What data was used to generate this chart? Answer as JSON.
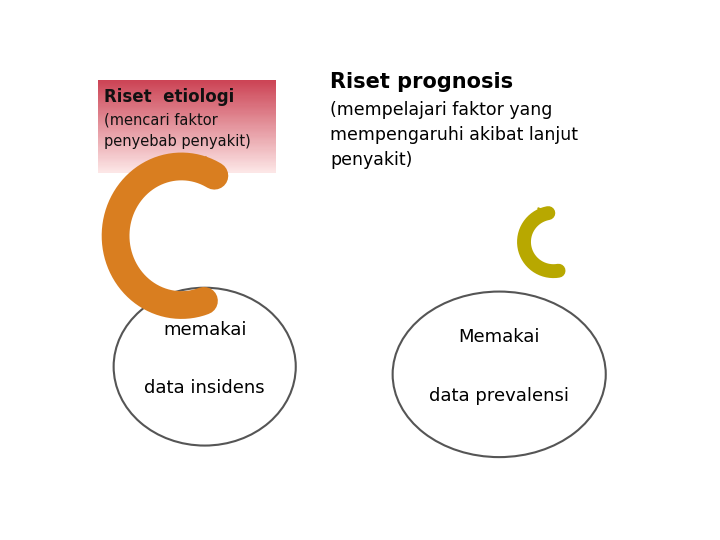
{
  "bg_color": "#ffffff",
  "title_right": "Riset prognosis",
  "subtitle_right": "(mempelajari faktor yang\nmempengaruhi akibat lanjut\npenyakit)",
  "box_left_title": "Riset  etiologi",
  "box_left_subtitle": "(mencari faktor\npenyebab penyakit)",
  "circle_left_text": "memakai\n\ndata insidens",
  "circle_right_text": "Memakai\n\ndata prevalensi",
  "circle_color": "#ffffff",
  "circle_edge_color": "#555555",
  "arrow_left_color": "#d97e20",
  "arrow_right_color": "#b8a800",
  "text_color_black": "#000000"
}
